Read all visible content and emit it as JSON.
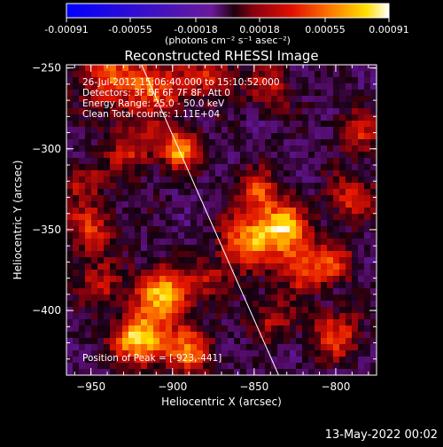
{
  "colorbar": {
    "tick_labels": [
      "-0.00091",
      "-0.00055",
      "-0.00018",
      "0.00018",
      "0.00055",
      "0.00091"
    ],
    "tick_values": [
      -0.00091,
      -0.00055,
      -0.00018,
      0.00018,
      0.00055,
      0.00091
    ],
    "range": [
      -0.00091,
      0.00091
    ],
    "unit_label": "(photons cm⁻² s⁻¹ asec⁻²)"
  },
  "footer": {
    "date": "13-May-2022 00:02"
  },
  "chart_data": {
    "type": "heatmap",
    "title": "Reconstructed RHESSI Image",
    "xlabel": "Heliocentric X (arcsec)",
    "ylabel": "Heliocentric Y (arcsec)",
    "xlim": [
      -965,
      -775
    ],
    "ylim": [
      -440,
      -248
    ],
    "xticks": [
      -950,
      -900,
      -850,
      -800
    ],
    "xtick_labels": [
      "−950",
      "−900",
      "−850",
      "−800"
    ],
    "yticks": [
      -250,
      -300,
      -350,
      -400
    ],
    "ytick_labels": [
      "−250",
      "−300",
      "−350",
      "−400"
    ],
    "colormap": "rhessi-blue-purple-red-yellow-white",
    "limb_line": {
      "x": [
        -919,
        -835
      ],
      "y": [
        -248,
        -440
      ]
    },
    "annotations": [
      "26-Jul-2012 15:06:40.000 to 15:10:52.000",
      "Detectors: 3F 5F 6F 7F 8F, Att 0",
      "Energy Range: 25.0 - 50.0 keV",
      "Clean    Total counts: 1.11E+04"
    ],
    "peak_label": "Position of Peak = [-923,-441]",
    "peak": {
      "x": -923,
      "y": -441
    },
    "sources": [
      {
        "x": -940,
        "y": -255,
        "amp": 0.55,
        "sigma": 14
      },
      {
        "x": -910,
        "y": -262,
        "amp": 0.65,
        "sigma": 13
      },
      {
        "x": -895,
        "y": -300,
        "amp": 0.9,
        "sigma": 8
      },
      {
        "x": -925,
        "y": -300,
        "amp": 0.45,
        "sigma": 12
      },
      {
        "x": -875,
        "y": -255,
        "amp": 0.5,
        "sigma": 10
      },
      {
        "x": -840,
        "y": -262,
        "amp": 0.45,
        "sigma": 10
      },
      {
        "x": -848,
        "y": -328,
        "amp": 0.6,
        "sigma": 10
      },
      {
        "x": -832,
        "y": -350,
        "amp": 0.9,
        "sigma": 11
      },
      {
        "x": -855,
        "y": -358,
        "amp": 0.75,
        "sigma": 11
      },
      {
        "x": -820,
        "y": -375,
        "amp": 0.6,
        "sigma": 10
      },
      {
        "x": -790,
        "y": -330,
        "amp": 0.55,
        "sigma": 10
      },
      {
        "x": -785,
        "y": -290,
        "amp": 0.45,
        "sigma": 10
      },
      {
        "x": -950,
        "y": -350,
        "amp": 0.55,
        "sigma": 11
      },
      {
        "x": -955,
        "y": -320,
        "amp": 0.4,
        "sigma": 9
      },
      {
        "x": -945,
        "y": -385,
        "amp": 0.45,
        "sigma": 10
      },
      {
        "x": -905,
        "y": -390,
        "amp": 0.9,
        "sigma": 12
      },
      {
        "x": -920,
        "y": -418,
        "amp": 1.0,
        "sigma": 11
      },
      {
        "x": -890,
        "y": -425,
        "amp": 0.7,
        "sigma": 10
      },
      {
        "x": -800,
        "y": -415,
        "amp": 0.55,
        "sigma": 11
      },
      {
        "x": -840,
        "y": -405,
        "amp": 0.4,
        "sigma": 10
      },
      {
        "x": -875,
        "y": -380,
        "amp": 0.35,
        "sigma": 9
      },
      {
        "x": -800,
        "y": -370,
        "amp": 0.45,
        "sigma": 9
      }
    ]
  }
}
